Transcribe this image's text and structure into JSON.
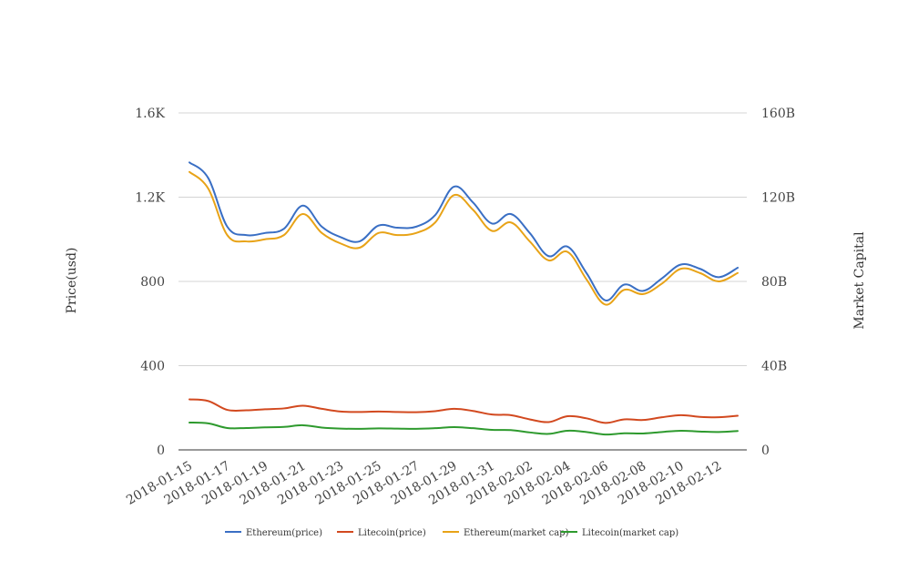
{
  "chart_data": {
    "type": "line",
    "x": [
      "2018-01-15",
      "2018-01-16",
      "2018-01-17",
      "2018-01-18",
      "2018-01-19",
      "2018-01-20",
      "2018-01-21",
      "2018-01-22",
      "2018-01-23",
      "2018-01-24",
      "2018-01-25",
      "2018-01-26",
      "2018-01-27",
      "2018-01-28",
      "2018-01-29",
      "2018-01-30",
      "2018-01-31",
      "2018-02-01",
      "2018-02-02",
      "2018-02-03",
      "2018-02-04",
      "2018-02-05",
      "2018-02-06",
      "2018-02-07",
      "2018-02-08",
      "2018-02-09",
      "2018-02-10",
      "2018-02-11",
      "2018-02-12",
      "2018-02-13"
    ],
    "x_tick_labels": [
      "2018-01-15",
      "2018-01-17",
      "2018-01-19",
      "2018-01-21",
      "2018-01-23",
      "2018-01-25",
      "2018-01-27",
      "2018-01-29",
      "2018-01-31",
      "2018-02-02",
      "2018-02-04",
      "2018-02-06",
      "2018-02-08",
      "2018-02-10",
      "2018-02-12"
    ],
    "y_left": {
      "label": "Price(usd)",
      "ticks": [
        "0",
        "400",
        "800",
        "1.2K",
        "1.6K"
      ],
      "range": [
        0,
        1600
      ]
    },
    "y_right": {
      "label": "Market Capital",
      "ticks": [
        "0",
        "40B",
        "80B",
        "120B",
        "160B"
      ],
      "range": [
        0,
        160
      ]
    },
    "grid": true,
    "legend_position": "bottom",
    "series": [
      {
        "name": "Ethereum(price)",
        "color": "#3a6fc4",
        "axis": "left",
        "values": [
          1365,
          1290,
          1060,
          1020,
          1030,
          1050,
          1160,
          1060,
          1010,
          990,
          1065,
          1055,
          1060,
          1115,
          1250,
          1175,
          1075,
          1120,
          1030,
          920,
          965,
          840,
          710,
          785,
          755,
          815,
          880,
          860,
          820,
          865
        ]
      },
      {
        "name": "Litecoin(price)",
        "color": "#d2491f",
        "axis": "left",
        "values": [
          240,
          232,
          190,
          188,
          193,
          197,
          210,
          195,
          182,
          180,
          182,
          180,
          179,
          184,
          195,
          185,
          168,
          165,
          145,
          132,
          160,
          150,
          128,
          145,
          142,
          155,
          165,
          157,
          155,
          162
        ]
      },
      {
        "name": "Ethereum(market cap)",
        "color": "#e8a317",
        "axis": "right",
        "values": [
          132,
          124,
          102,
          99,
          100,
          102,
          112,
          103,
          98,
          96,
          103,
          102,
          103,
          108,
          121,
          114,
          104,
          108,
          99,
          90,
          94,
          81,
          69,
          76,
          74,
          79,
          86,
          84,
          80,
          84
        ]
      },
      {
        "name": "Litecoin(market cap)",
        "color": "#2e9a2e",
        "axis": "right",
        "values": [
          13,
          12.6,
          10.4,
          10.4,
          10.7,
          10.9,
          11.7,
          10.6,
          10.1,
          10.0,
          10.2,
          10.1,
          10.0,
          10.3,
          10.8,
          10.3,
          9.5,
          9.4,
          8.3,
          7.6,
          9.1,
          8.5,
          7.3,
          7.9,
          7.8,
          8.5,
          9.1,
          8.7,
          8.5,
          9.0
        ]
      }
    ]
  }
}
